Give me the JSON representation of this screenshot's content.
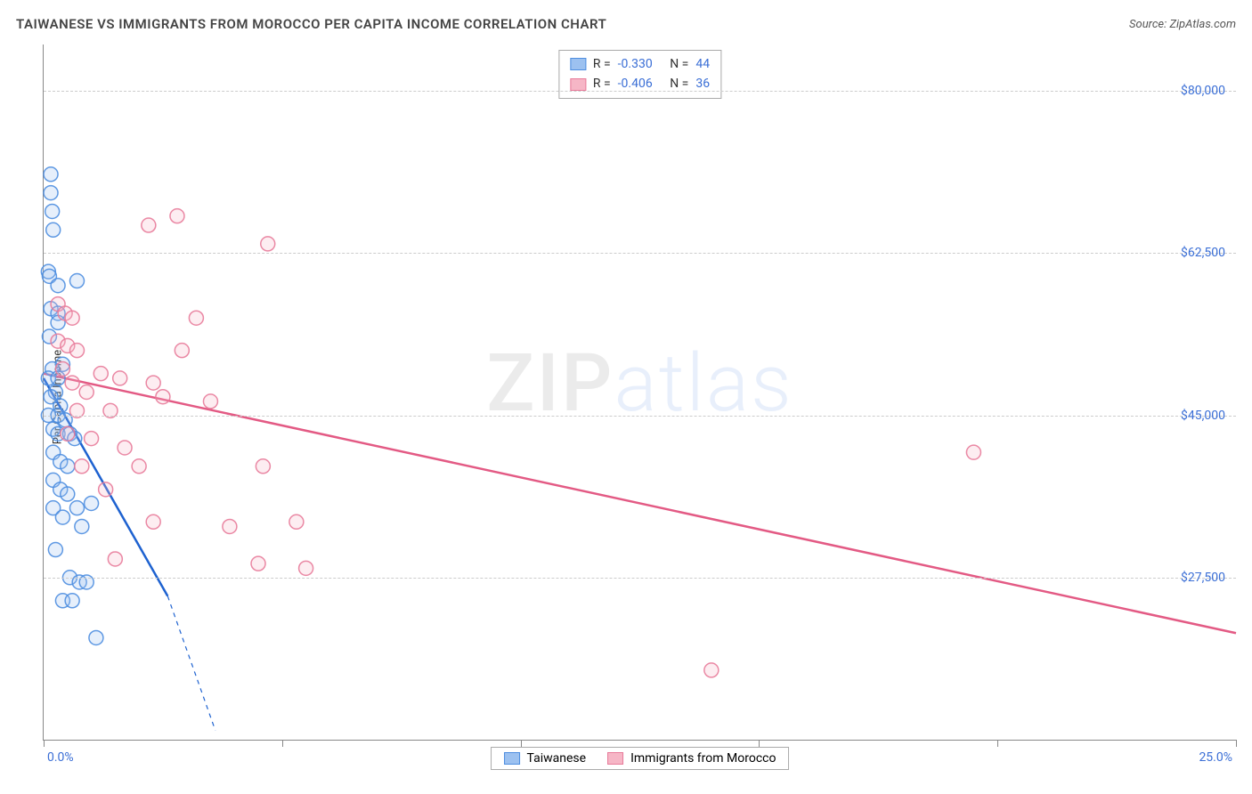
{
  "title": "TAIWANESE VS IMMIGRANTS FROM MOROCCO PER CAPITA INCOME CORRELATION CHART",
  "source_prefix": "Source: ",
  "source_name": "ZipAtlas.com",
  "ylabel": "Per Capita Income",
  "watermark": {
    "part1": "ZIP",
    "part2": "atlas"
  },
  "chart": {
    "type": "scatter",
    "background_color": "#ffffff",
    "grid_color": "#cccccc",
    "axis_color": "#888888",
    "tick_label_color": "#3b6fd6",
    "xlim": [
      0,
      25
    ],
    "ylim": [
      10000,
      85000
    ],
    "x_ticks": [
      0,
      5,
      10,
      15,
      20,
      25
    ],
    "x_tick_labels_shown": {
      "left": "0.0%",
      "right": "25.0%"
    },
    "y_gridlines": [
      27500,
      45000,
      62500,
      80000
    ],
    "y_tick_labels": [
      "$27,500",
      "$45,000",
      "$62,500",
      "$80,000"
    ],
    "marker_radius": 8,
    "marker_fill_opacity": 0.25,
    "marker_stroke_opacity": 0.9,
    "line_width_solid": 2.5,
    "line_width_dashed": 1.2,
    "series": [
      {
        "name": "Taiwanese",
        "color_fill": "#9cc1f0",
        "color_stroke": "#4e8ee0",
        "line_color": "#1e62d0",
        "R": "-0.330",
        "N": "44",
        "regression": {
          "x1": 0,
          "y1": 49000,
          "x2_solid": 2.6,
          "y2_solid": 25500,
          "x2_dash": 3.6,
          "y2_dash": 11000
        },
        "points": [
          [
            0.15,
            71000
          ],
          [
            0.15,
            69000
          ],
          [
            0.18,
            67000
          ],
          [
            0.2,
            65000
          ],
          [
            0.1,
            60500
          ],
          [
            0.12,
            60000
          ],
          [
            0.3,
            59000
          ],
          [
            0.7,
            59500
          ],
          [
            0.15,
            56500
          ],
          [
            0.3,
            56000
          ],
          [
            0.3,
            55000
          ],
          [
            0.12,
            53500
          ],
          [
            0.4,
            50500
          ],
          [
            0.18,
            50000
          ],
          [
            0.1,
            49000
          ],
          [
            0.3,
            49000
          ],
          [
            0.25,
            47500
          ],
          [
            0.15,
            47000
          ],
          [
            0.35,
            46000
          ],
          [
            0.1,
            45000
          ],
          [
            0.3,
            45000
          ],
          [
            0.45,
            44500
          ],
          [
            0.2,
            43500
          ],
          [
            0.3,
            43000
          ],
          [
            0.55,
            43000
          ],
          [
            0.65,
            42500
          ],
          [
            0.2,
            41000
          ],
          [
            0.35,
            40000
          ],
          [
            0.5,
            39500
          ],
          [
            0.2,
            38000
          ],
          [
            0.35,
            37000
          ],
          [
            0.5,
            36500
          ],
          [
            0.2,
            35000
          ],
          [
            0.7,
            35000
          ],
          [
            0.4,
            34000
          ],
          [
            0.8,
            33000
          ],
          [
            0.25,
            30500
          ],
          [
            0.55,
            27500
          ],
          [
            0.75,
            27000
          ],
          [
            0.9,
            27000
          ],
          [
            0.4,
            25000
          ],
          [
            0.6,
            25000
          ],
          [
            1.1,
            21000
          ],
          [
            1.0,
            35500
          ]
        ]
      },
      {
        "name": "Immigrants from Morocco",
        "color_fill": "#f6b6c6",
        "color_stroke": "#e87b9a",
        "line_color": "#e35a84",
        "R": "-0.406",
        "N": "36",
        "regression": {
          "x1": 0,
          "y1": 49500,
          "x2_solid": 25,
          "y2_solid": 21500,
          "x2_dash": 25,
          "y2_dash": 21500
        },
        "points": [
          [
            2.2,
            65500
          ],
          [
            2.8,
            66500
          ],
          [
            4.7,
            63500
          ],
          [
            0.3,
            57000
          ],
          [
            0.45,
            56000
          ],
          [
            0.6,
            55500
          ],
          [
            3.2,
            55500
          ],
          [
            0.3,
            53000
          ],
          [
            0.5,
            52500
          ],
          [
            0.7,
            52000
          ],
          [
            2.9,
            52000
          ],
          [
            0.4,
            50000
          ],
          [
            1.2,
            49500
          ],
          [
            1.6,
            49000
          ],
          [
            0.6,
            48500
          ],
          [
            2.3,
            48500
          ],
          [
            0.9,
            47500
          ],
          [
            2.5,
            47000
          ],
          [
            0.7,
            45500
          ],
          [
            1.4,
            45500
          ],
          [
            3.5,
            46500
          ],
          [
            0.5,
            43000
          ],
          [
            1.0,
            42500
          ],
          [
            1.7,
            41500
          ],
          [
            0.8,
            39500
          ],
          [
            2.0,
            39500
          ],
          [
            4.6,
            39500
          ],
          [
            1.3,
            37000
          ],
          [
            19.5,
            41000
          ],
          [
            2.3,
            33500
          ],
          [
            3.9,
            33000
          ],
          [
            5.3,
            33500
          ],
          [
            4.5,
            29000
          ],
          [
            1.5,
            29500
          ],
          [
            5.5,
            28500
          ],
          [
            14.0,
            17500
          ]
        ]
      }
    ]
  },
  "legend_labels": {
    "series1": "Taiwanese",
    "series2": "Immigrants from Morocco"
  },
  "stats_labels": {
    "R": "R =",
    "N": "N ="
  }
}
